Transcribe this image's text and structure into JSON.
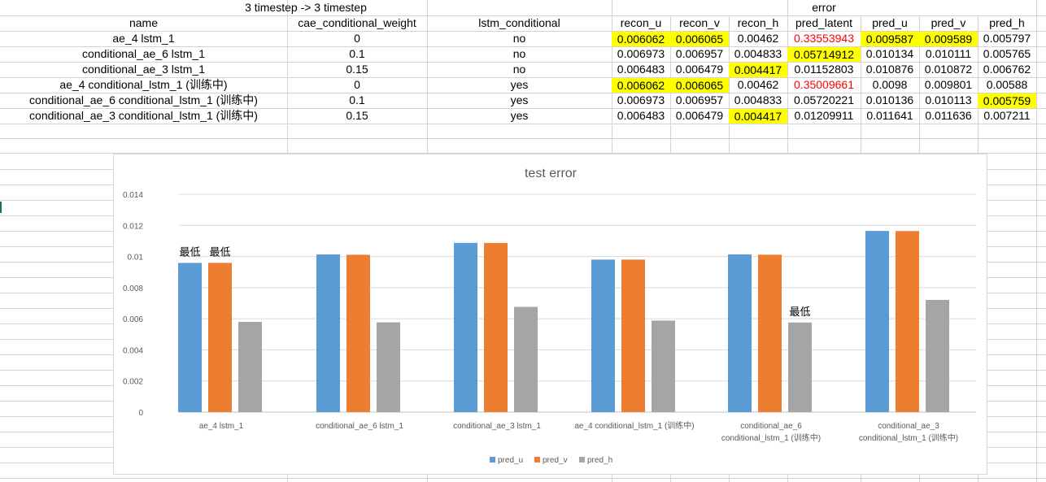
{
  "header": {
    "group_title": "3 timestep -> 3 timestep",
    "error_title": "error"
  },
  "columns": [
    "name",
    "cae_conditional_weight",
    "lstm_conditional",
    "recon_u",
    "recon_v",
    "recon_h",
    "pred_latent",
    "pred_u",
    "pred_v",
    "pred_h"
  ],
  "rows": [
    {
      "cells": [
        "ae_4 lstm_1",
        "0",
        "no",
        "0.006062",
        "0.006065",
        "0.00462",
        "0.33553943",
        "0.009587",
        "0.009589",
        "0.005797"
      ]
    },
    {
      "cells": [
        "conditional_ae_6 lstm_1",
        "0.1",
        "no",
        "0.006973",
        "0.006957",
        "0.004833",
        "0.05714912",
        "0.010134",
        "0.010111",
        "0.005765"
      ]
    },
    {
      "cells": [
        "conditional_ae_3 lstm_1",
        "0.15",
        "no",
        "0.006483",
        "0.006479",
        "0.004417",
        "0.01152803",
        "0.010876",
        "0.010872",
        "0.006762"
      ]
    },
    {
      "cells": [
        "ae_4 conditional_lstm_1 (训练中)",
        "0",
        "yes",
        "0.006062",
        "0.006065",
        "0.00462",
        "0.35009661",
        "0.0098",
        "0.009801",
        "0.00588"
      ]
    },
    {
      "cells": [
        "conditional_ae_6 conditional_lstm_1 (训练中)",
        "0.1",
        "yes",
        "0.006973",
        "0.006957",
        "0.004833",
        "0.05720221",
        "0.010136",
        "0.010113",
        "0.005759"
      ]
    },
    {
      "cells": [
        "conditional_ae_3 conditional_lstm_1 (训练中)",
        "0.15",
        "yes",
        "0.006483",
        "0.006479",
        "0.004417",
        "0.01209911",
        "0.011641",
        "0.011636",
        "0.007211"
      ]
    }
  ],
  "highlight_color": "#ffff00",
  "red_text_color": "#ff0000",
  "chart_data": {
    "type": "bar",
    "title": "test error",
    "categories": [
      [
        "ae_4 lstm_1"
      ],
      [
        "conditional_ae_6 lstm_1"
      ],
      [
        "conditional_ae_3 lstm_1"
      ],
      [
        "ae_4 conditional_lstm_1 (训练中)"
      ],
      [
        "conditional_ae_6",
        "conditional_lstm_1 (训练中)"
      ],
      [
        "conditional_ae_3",
        "conditional_lstm_1 (训练中)"
      ]
    ],
    "series": [
      {
        "name": "pred_u",
        "color": "#5b9bd5",
        "values": [
          0.009587,
          0.010134,
          0.010876,
          0.0098,
          0.010136,
          0.011641
        ]
      },
      {
        "name": "pred_v",
        "color": "#ed7d31",
        "values": [
          0.009589,
          0.010111,
          0.010872,
          0.009801,
          0.010113,
          0.011636
        ]
      },
      {
        "name": "pred_h",
        "color": "#a5a5a5",
        "values": [
          0.005797,
          0.005765,
          0.006762,
          0.00588,
          0.005759,
          0.007211
        ]
      }
    ],
    "ylim": [
      0,
      0.014
    ],
    "yticks": [
      "0",
      "0.002",
      "0.004",
      "0.006",
      "0.008",
      "0.01",
      "0.012",
      "0.014"
    ],
    "grid": true,
    "legend": "bottom",
    "annotations": [
      {
        "text": "最低",
        "category": 0,
        "series": 0
      },
      {
        "text": "最低",
        "category": 0,
        "series": 1
      },
      {
        "text": "最低",
        "category": 4,
        "series": 2
      }
    ]
  }
}
